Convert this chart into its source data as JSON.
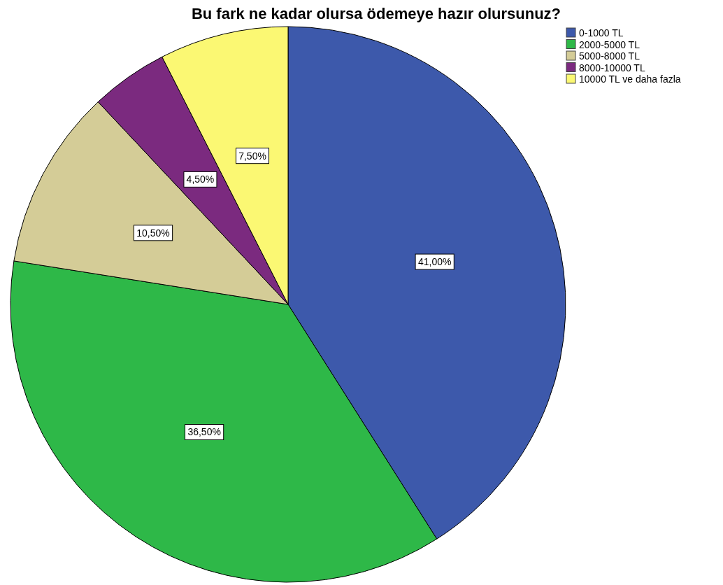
{
  "chart_data": {
    "type": "pie",
    "title": "Bu fark ne kadar olursa ödemeye hazır olursunuz?",
    "categories": [
      "0-1000 TL",
      "2000-5000 TL",
      "5000-8000 TL",
      "8000-10000 TL",
      "10000 TL ve daha fazla"
    ],
    "values": [
      41,
      36.5,
      10.5,
      4.5,
      7.5
    ],
    "colors": [
      "#3d59ab",
      "#2eb848",
      "#d4cc97",
      "#7b2a7f",
      "#fbf873"
    ],
    "value_labels": [
      "41,00%",
      "36,50%",
      "10,50%",
      "4,50%",
      "7,50%"
    ],
    "legend": "top right"
  }
}
